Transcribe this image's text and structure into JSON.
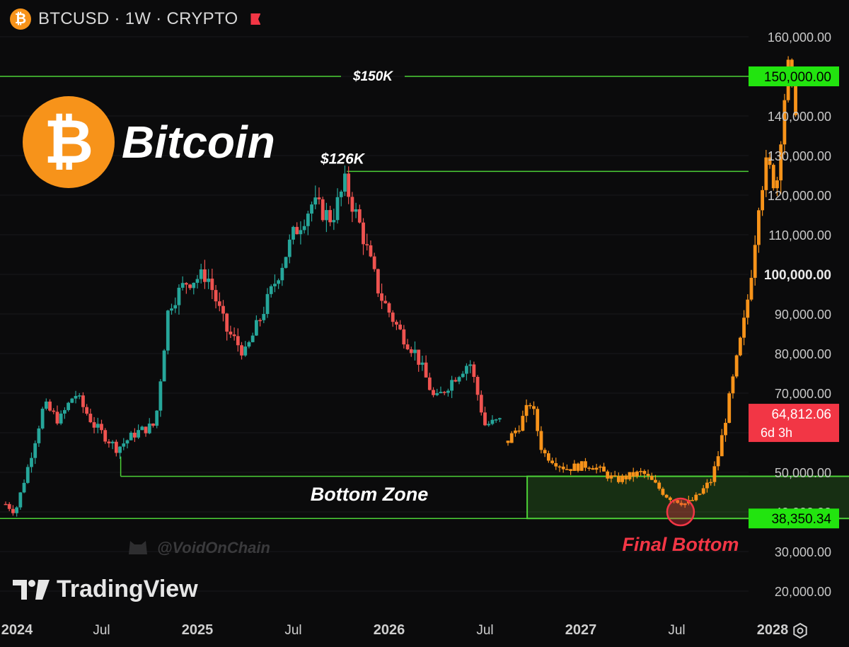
{
  "header": {
    "coin_icon": "bitcoin-icon",
    "coin_glyph": "₿",
    "title": "BTCUSD · 1W · CRYPTO",
    "flag_icon": "flag-icon",
    "flag_color": "#f23645"
  },
  "brand": {
    "coin_glyph": "₿",
    "name": "Bitcoin",
    "color": "#f7931a"
  },
  "footer": {
    "logo": "tradingview-logo",
    "name": "TradingView",
    "watermark": "@VoidOnChain",
    "settings_icon": "settings-icon"
  },
  "chart_data": {
    "type": "candlestick",
    "title": "",
    "ylim": [
      12000,
      167000
    ],
    "y_ticks": [
      {
        "v": 160000,
        "label": "160,000.00"
      },
      {
        "v": 150000,
        "label": "150,000.00"
      },
      {
        "v": 140000,
        "label": "140,000.00"
      },
      {
        "v": 130000,
        "label": "130,000.00"
      },
      {
        "v": 120000,
        "label": "120,000.00"
      },
      {
        "v": 110000,
        "label": "110,000.00"
      },
      {
        "v": 100000,
        "label": "100,000.00"
      },
      {
        "v": 90000,
        "label": "90,000.00"
      },
      {
        "v": 80000,
        "label": "80,000.00"
      },
      {
        "v": 70000,
        "label": "70,000.00"
      },
      {
        "v": 60000,
        "label": "60,000.00"
      },
      {
        "v": 50000,
        "label": "50,000.00"
      },
      {
        "v": 40000,
        "label": "40,000.00"
      },
      {
        "v": 30000,
        "label": "30,000.00"
      },
      {
        "v": 20000,
        "label": "20,000.00"
      }
    ],
    "x_ticks": [
      {
        "t": 2024.0,
        "label": "2024"
      },
      {
        "t": 2024.5,
        "label": "Jul"
      },
      {
        "t": 2025.0,
        "label": "2025"
      },
      {
        "t": 2025.5,
        "label": "Jul"
      },
      {
        "t": 2026.0,
        "label": "2026"
      },
      {
        "t": 2026.5,
        "label": "Jul"
      },
      {
        "t": 2027.0,
        "label": "2027"
      },
      {
        "t": 2027.5,
        "label": "Jul"
      },
      {
        "t": 2028.0,
        "label": "2028"
      }
    ],
    "xlim": [
      2024.0,
      2028.7
    ],
    "historical_anchors": [
      [
        2024.0,
        42000
      ],
      [
        2024.05,
        40000
      ],
      [
        2024.12,
        52000
      ],
      [
        2024.2,
        67000
      ],
      [
        2024.28,
        63000
      ],
      [
        2024.36,
        70000
      ],
      [
        2024.46,
        62000
      ],
      [
        2024.58,
        56000
      ],
      [
        2024.68,
        60000
      ],
      [
        2024.78,
        62000
      ],
      [
        2024.85,
        92000
      ],
      [
        2024.94,
        98000
      ],
      [
        2025.05,
        100000
      ],
      [
        2025.15,
        86000
      ],
      [
        2025.25,
        80000
      ],
      [
        2025.38,
        95000
      ],
      [
        2025.5,
        110000
      ],
      [
        2025.6,
        118000
      ],
      [
        2025.7,
        114000
      ],
      [
        2025.77,
        123000
      ],
      [
        2025.85,
        112000
      ],
      [
        2025.95,
        95000
      ],
      [
        2026.05,
        86000
      ],
      [
        2026.14,
        80000
      ],
      [
        2026.24,
        68000
      ],
      [
        2026.34,
        74000
      ],
      [
        2026.42,
        78000
      ],
      [
        2026.5,
        62000
      ],
      [
        2026.58,
        63000
      ]
    ],
    "projection_anchors": [
      [
        2026.62,
        58000
      ],
      [
        2026.68,
        62000
      ],
      [
        2026.74,
        68000
      ],
      [
        2026.8,
        55000
      ],
      [
        2026.92,
        51000
      ],
      [
        2027.05,
        52000
      ],
      [
        2027.18,
        48000
      ],
      [
        2027.32,
        50000
      ],
      [
        2027.45,
        44000
      ],
      [
        2027.55,
        42000
      ],
      [
        2027.6,
        43500
      ],
      [
        2027.68,
        48000
      ],
      [
        2027.72,
        55000
      ],
      [
        2027.8,
        75000
      ],
      [
        2027.86,
        90000
      ],
      [
        2027.9,
        105000
      ],
      [
        2027.93,
        120000
      ],
      [
        2027.97,
        128000
      ],
      [
        2028.02,
        122000
      ],
      [
        2028.05,
        140000
      ],
      [
        2028.08,
        152000
      ],
      [
        2028.12,
        143000
      ]
    ],
    "price_levels": [
      {
        "name": "$150K",
        "value": 150000,
        "label_text": "$150K",
        "badge": "150,000.00"
      },
      {
        "name": "$126K",
        "value": 126000,
        "label_text": "$126K"
      },
      {
        "name": "Bottom zone top",
        "value": 49000
      },
      {
        "name": "Bottom zone bottom",
        "value": 38350.34,
        "badge": "38,350.34"
      }
    ],
    "current_price": {
      "value": 64812.06,
      "label": "64,812.06",
      "countdown": "6d 3h"
    },
    "bottom_zone": {
      "label": "Bottom Zone",
      "x_start": 2026.72,
      "x_end": 2028.48,
      "y_low": 38350.34,
      "y_high": 49000
    },
    "final_bottom": {
      "label": "Final Bottom",
      "t": 2027.52,
      "value": 40000
    },
    "colors": {
      "up": "#26a69a",
      "down": "#ef5350",
      "projection": "#f7931a",
      "level": "#4cd137",
      "badge_green": "#22e40f",
      "badge_red": "#f23645",
      "final_bottom": "#f23645"
    }
  }
}
